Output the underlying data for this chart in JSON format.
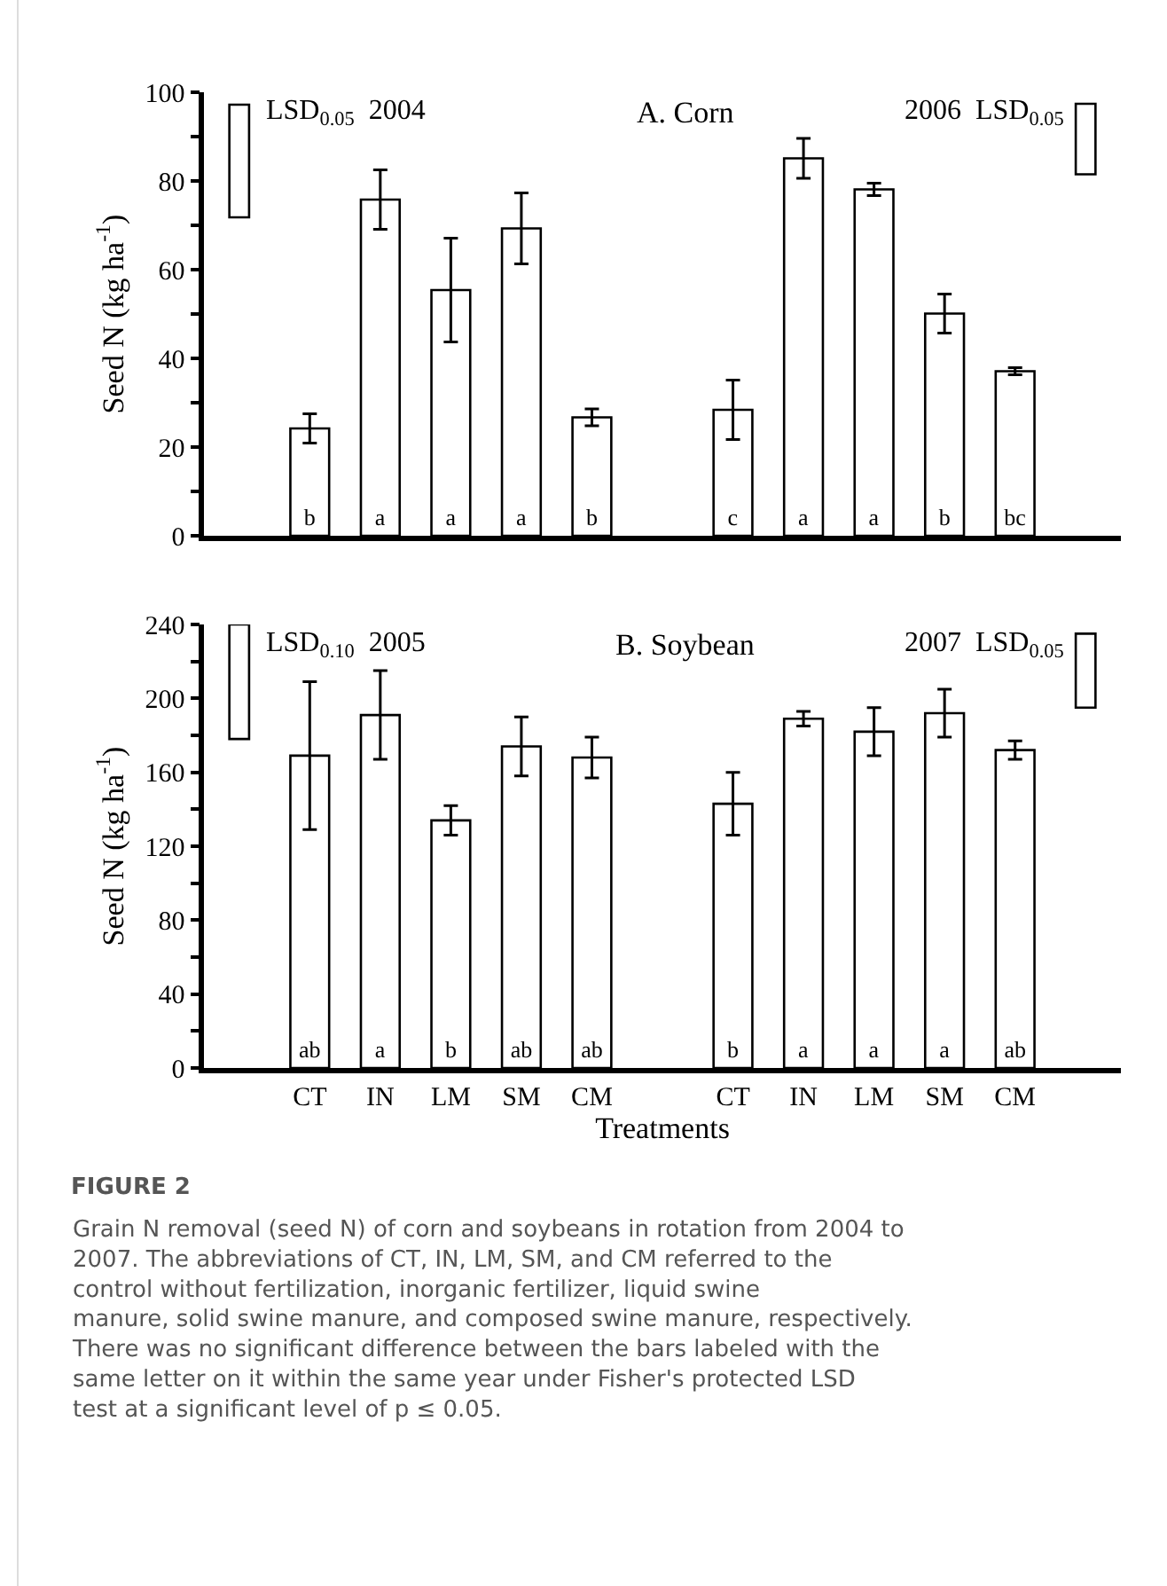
{
  "chart_data": [
    {
      "type": "bar",
      "title": "A. Corn",
      "ylabel": "Seed N (kg ha$^{-1}$)",
      "categories": [
        null,
        null,
        null,
        null,
        null,
        null,
        null,
        null,
        null,
        null,
        null,
        null,
        null
      ],
      "series": [
        {
          "color": "#ffffff",
          "values": [
            null,
            24.2,
            75.8,
            55.4,
            69.3,
            26.7,
            null,
            28.4,
            85.1,
            78.1,
            50.1,
            37.1,
            null
          ],
          "errors": [
            null,
            3.3,
            6.7,
            11.7,
            8,
            1.9,
            null,
            6.7,
            4.5,
            1.4,
            4.4,
            0.8,
            null
          ],
          "value_labels": [
            null,
            "b",
            "a",
            "a",
            "a",
            "b",
            null,
            "c",
            "a",
            "a",
            "b",
            "bc",
            null
          ]
        },
        {
          "color": "#ffffff",
          "values": [
            25.4,
            null,
            null,
            null,
            null,
            null,
            null,
            null,
            null,
            null,
            null,
            null,
            15.9
          ],
          "base": [
            71.8,
            null,
            null,
            null,
            null,
            null,
            null,
            null,
            null,
            null,
            null,
            null,
            81.5
          ]
        }
      ],
      "ylim": [
        0,
        100
      ],
      "yticks": [
        0,
        {
          "value": 10,
          "label": null
        },
        20,
        {
          "value": 30,
          "label": null
        },
        40,
        {
          "value": 50,
          "label": null
        },
        60,
        {
          "value": 70,
          "label": null
        },
        80,
        {
          "value": 90,
          "label": null
        },
        100
      ],
      "tick_labels": "y",
      "annotations": [
        "LSD$_{0.05}$  2004",
        "2006  LSD$_{0.05}$"
      ]
    },
    {
      "type": "bar",
      "title": "B. Soybean",
      "ylabel": "Seed N (kg ha$^{-1}$)",
      "xlabel": "Treatments",
      "categories": [
        null,
        "CT",
        "IN",
        "LM",
        "SM",
        "CM",
        null,
        "CT",
        "IN",
        "LM",
        "SM",
        "CM",
        null
      ],
      "series": [
        {
          "color": "#ffffff",
          "values": [
            null,
            169,
            191,
            134,
            174,
            168,
            null,
            143,
            189,
            182,
            192,
            172,
            null
          ],
          "errors": [
            null,
            40,
            24,
            8,
            16,
            11,
            null,
            17,
            4,
            13,
            13,
            5,
            null
          ],
          "value_labels": [
            null,
            "ab",
            "a",
            "b",
            "ab",
            "ab",
            null,
            "b",
            "a",
            "a",
            "a",
            "ab",
            null
          ]
        },
        {
          "color": "#ffffff",
          "values": [
            62,
            null,
            null,
            null,
            null,
            null,
            null,
            null,
            null,
            null,
            null,
            null,
            40
          ],
          "base": [
            178,
            null,
            null,
            null,
            null,
            null,
            null,
            null,
            null,
            null,
            null,
            null,
            195
          ]
        }
      ],
      "ylim": [
        0,
        240
      ],
      "yticks": [
        0,
        {
          "value": 20,
          "label": null
        },
        40,
        {
          "value": 60,
          "label": null
        },
        80,
        {
          "value": 100,
          "label": null
        },
        120,
        {
          "value": 140,
          "label": null
        },
        160,
        {
          "value": 180,
          "label": null
        },
        200,
        {
          "value": 220,
          "label": null
        },
        240
      ],
      "annotations": [
        "LSD$_{0.10}$  2005",
        "2007  LSD$_{0.05}$",
        "FIGURE 2",
        "Grain N removal (seed N) of corn and soybeans in rotation from 2004 to 2007. The abbreviations of CT, IN, LM, SM, and CM referred to the control without fertilization, inorganic fertilizer, liquid swine manure, solid swine manure, and composed swine manure, respectively. There was no significant difference between the bars labeled with the same letter on it within the same year under Fisher's protected LSD test at a significant level of p ≤ 0.05."
      ]
    }
  ]
}
